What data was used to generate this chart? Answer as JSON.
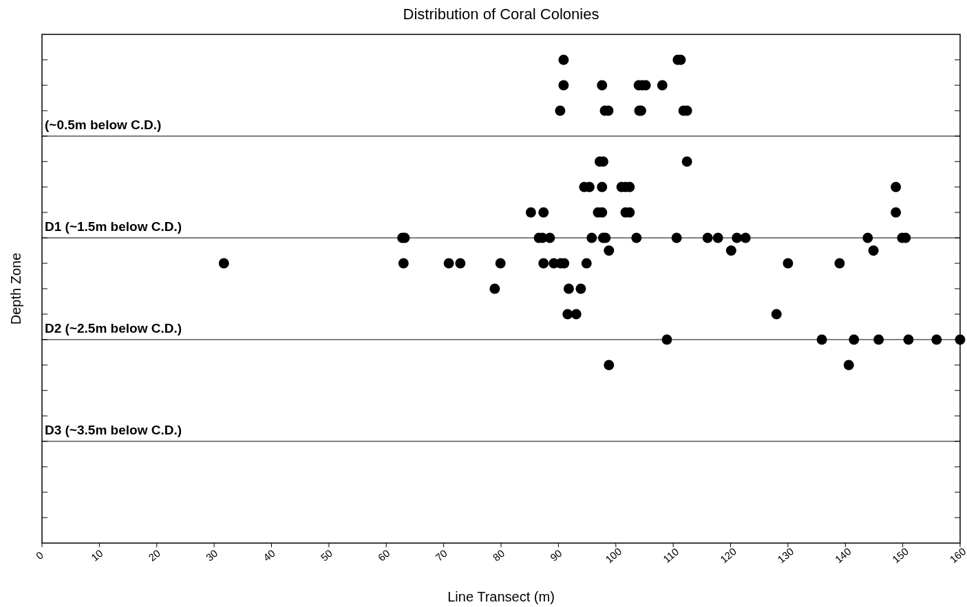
{
  "chart_data": {
    "type": "scatter",
    "title": "Distribution of Coral Colonies",
    "xlabel": "Line Transect (m)",
    "ylabel": "Depth Zone",
    "marker": "circle",
    "grid": false,
    "xlim": [
      0,
      160
    ],
    "xticks": [
      0,
      10,
      20,
      30,
      40,
      50,
      60,
      70,
      80,
      90,
      100,
      110,
      120,
      130,
      140,
      150,
      160
    ],
    "ylim": [
      4.5,
      -0.5
    ],
    "yticks": [
      {
        "value": -0.25,
        "label": null
      },
      {
        "value": 0,
        "label": null
      },
      {
        "value": 0.25,
        "label": null
      },
      {
        "value": 0.5,
        "label": null
      },
      {
        "value": 0.75,
        "label": null
      },
      {
        "value": 1,
        "label": null
      },
      {
        "value": 1.25,
        "label": null
      },
      {
        "value": 1.5,
        "label": null
      },
      {
        "value": 1.75,
        "label": null
      },
      {
        "value": 2,
        "label": null
      },
      {
        "value": 2.25,
        "label": null
      },
      {
        "value": 2.5,
        "label": null
      },
      {
        "value": 2.75,
        "label": null
      },
      {
        "value": 3,
        "label": null
      },
      {
        "value": 3.25,
        "label": null
      },
      {
        "value": 3.5,
        "label": null
      },
      {
        "value": 3.75,
        "label": null
      },
      {
        "value": 4,
        "label": null
      },
      {
        "value": 4.25,
        "label": null
      }
    ],
    "ref_lines": [
      {
        "axis": "y",
        "value": 0.5,
        "label": "(~0.5m below C.D.)",
        "color": "#000000"
      },
      {
        "axis": "y",
        "value": 1.5,
        "label": "D1 (~1.5m below C.D.)",
        "color": "#000000"
      },
      {
        "axis": "y",
        "value": 2.5,
        "label": "D2 (~2.5m below C.D.)",
        "color": "#000000"
      },
      {
        "axis": "y",
        "value": 3.5,
        "label": "D3 (~3.5m below C.D.)",
        "color": "#000000"
      }
    ],
    "series": [
      {
        "color": "#000000",
        "x": [
          90.9,
          110.8,
          111.3,
          90.9,
          97.6,
          104.0,
          104.6,
          105.2,
          108.1,
          90.3,
          98.1,
          98.7,
          104.1,
          104.4,
          111.8,
          112.4,
          97.2,
          97.8,
          112.4,
          94.5,
          95.4,
          97.6,
          101.0,
          101.7,
          102.4,
          148.8,
          85.2,
          87.4,
          96.9,
          97.6,
          101.7,
          102.4,
          148.8,
          62.8,
          63.2,
          86.6,
          87.2,
          88.5,
          95.8,
          97.8,
          98.2,
          103.6,
          110.6,
          116.0,
          117.8,
          121.1,
          122.6,
          143.9,
          149.9,
          150.5,
          98.8,
          120.1,
          144.9,
          31.7,
          63.0,
          70.9,
          72.9,
          79.9,
          87.4,
          89.2,
          90.4,
          91.0,
          94.9,
          130.0,
          139.0,
          78.9,
          91.8,
          93.9,
          91.6,
          93.1,
          128.0,
          108.9,
          135.9,
          141.5,
          145.8,
          151.0,
          155.9,
          160.0,
          98.8,
          140.6
        ],
        "values": [
          -0.25,
          -0.25,
          -0.25,
          0,
          0,
          0,
          0,
          0,
          0,
          0.25,
          0.25,
          0.25,
          0.25,
          0.25,
          0.25,
          0.25,
          0.75,
          0.75,
          0.75,
          1,
          1,
          1,
          1,
          1,
          1,
          1,
          1.25,
          1.25,
          1.25,
          1.25,
          1.25,
          1.25,
          1.25,
          1.5,
          1.5,
          1.5,
          1.5,
          1.5,
          1.5,
          1.5,
          1.5,
          1.5,
          1.5,
          1.5,
          1.5,
          1.5,
          1.5,
          1.5,
          1.5,
          1.5,
          1.625,
          1.625,
          1.625,
          1.75,
          1.75,
          1.75,
          1.75,
          1.75,
          1.75,
          1.75,
          1.75,
          1.75,
          1.75,
          1.75,
          1.75,
          2,
          2,
          2,
          2.25,
          2.25,
          2.25,
          2.5,
          2.5,
          2.5,
          2.5,
          2.5,
          2.5,
          2.5,
          2.75,
          2.75
        ]
      }
    ]
  }
}
